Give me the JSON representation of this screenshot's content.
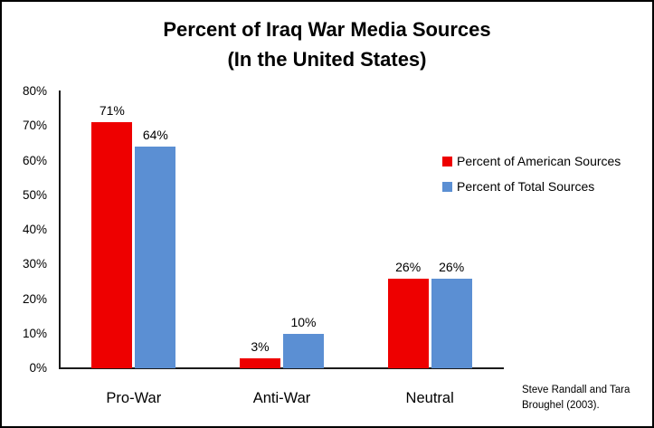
{
  "title": {
    "line1": "Percent of Iraq War Media Sources",
    "line2": "(In the United States)"
  },
  "chart_data": {
    "type": "bar",
    "categories": [
      "Pro-War",
      "Anti-War",
      "Neutral"
    ],
    "series": [
      {
        "name": "Percent of American Sources",
        "color": "#ee0000",
        "values": [
          71,
          3,
          26
        ]
      },
      {
        "name": "Percent of Total Sources",
        "color": "#5b8fd3",
        "values": [
          64,
          10,
          26
        ]
      }
    ],
    "data_labels": [
      "71%",
      "64%",
      "3%",
      "10%",
      "26%",
      "26%"
    ],
    "value_suffix": "%",
    "ylim": [
      0,
      80
    ],
    "ytick_step": 10,
    "ytick_labels": [
      "0%",
      "10%",
      "20%",
      "30%",
      "40%",
      "50%",
      "60%",
      "70%",
      "80%"
    ],
    "grid": false,
    "legend_position": "right",
    "axis_color": "#1a1a1a"
  },
  "citation": {
    "line1": "Steve Randall and Tara",
    "line2": "Broughel (2003)."
  }
}
